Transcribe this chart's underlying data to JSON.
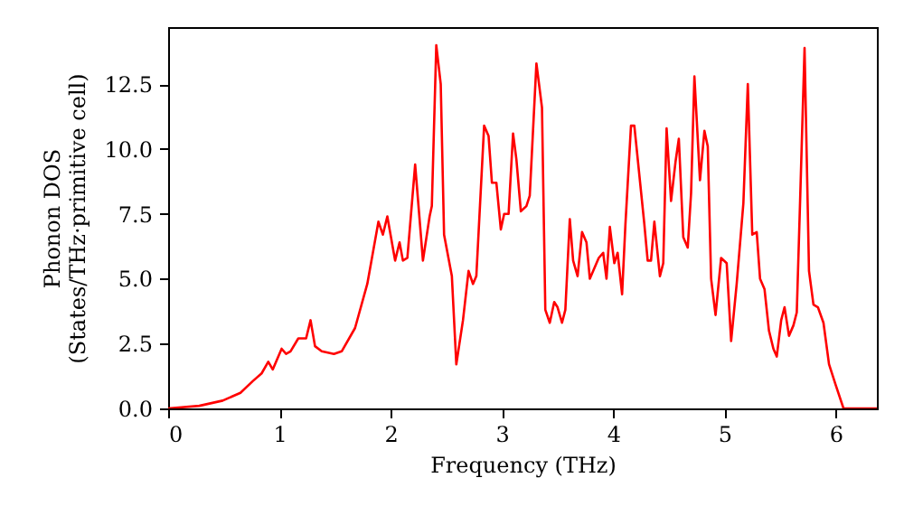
{
  "chart_data": {
    "type": "line",
    "xlabel": "Frequency (THz)",
    "ylabel": "Phonon DOS\n(States/THz·primitive cell)",
    "x": [
      0,
      0.28,
      0.49,
      0.65,
      0.76,
      0.84,
      0.9,
      0.94,
      1.02,
      1.06,
      1.1,
      1.17,
      1.24,
      1.28,
      1.32,
      1.38,
      1.49,
      1.56,
      1.68,
      1.79,
      1.89,
      1.93,
      1.97,
      2.04,
      2.08,
      2.11,
      2.15,
      2.22,
      2.29,
      2.35,
      2.37,
      2.41,
      2.45,
      2.48,
      2.55,
      2.59,
      2.65,
      2.7,
      2.74,
      2.77,
      2.84,
      2.88,
      2.91,
      2.95,
      2.99,
      3.02,
      3.06,
      3.1,
      3.13,
      3.17,
      3.22,
      3.25,
      3.31,
      3.36,
      3.39,
      3.43,
      3.47,
      3.5,
      3.54,
      3.57,
      3.61,
      3.64,
      3.68,
      3.72,
      3.76,
      3.79,
      3.83,
      3.87,
      3.91,
      3.94,
      3.97,
      4.01,
      4.04,
      4.08,
      4.11,
      4.16,
      4.19,
      4.28,
      4.31,
      4.34,
      4.37,
      4.42,
      4.45,
      4.48,
      4.52,
      4.56,
      4.59,
      4.63,
      4.67,
      4.7,
      4.73,
      4.78,
      4.82,
      4.85,
      4.88,
      4.92,
      4.97,
      5.02,
      5.06,
      5.11,
      5.17,
      5.21,
      5.25,
      5.29,
      5.32,
      5.36,
      5.4,
      5.44,
      5.47,
      5.51,
      5.54,
      5.58,
      5.62,
      5.65,
      5.68,
      5.72,
      5.76,
      5.8,
      5.84,
      5.89,
      5.94,
      6.0,
      6.07,
      6.37
    ],
    "series": [
      {
        "color": "#ff0000",
        "values": [
          0,
          0.1,
          0.3,
          0.6,
          1.05,
          1.35,
          1.8,
          1.5,
          2.3,
          2.1,
          2.2,
          2.7,
          2.7,
          3.4,
          2.4,
          2.2,
          2.1,
          2.2,
          3.1,
          4.8,
          7.2,
          6.7,
          7.4,
          5.7,
          6.4,
          5.7,
          5.8,
          9.4,
          5.7,
          7.4,
          7.8,
          14.0,
          12.5,
          6.7,
          5.1,
          1.7,
          3.4,
          5.3,
          4.8,
          5.1,
          10.9,
          10.5,
          8.7,
          8.7,
          6.9,
          7.5,
          7.5,
          10.6,
          9.6,
          7.6,
          7.8,
          8.2,
          13.3,
          11.6,
          3.8,
          3.3,
          4.1,
          3.9,
          3.3,
          3.8,
          7.3,
          5.7,
          5.1,
          6.8,
          6.4,
          5.0,
          5.4,
          5.8,
          6.0,
          5.0,
          7.0,
          5.6,
          6.0,
          4.4,
          7.1,
          10.9,
          10.9,
          7.1,
          5.7,
          5.7,
          7.2,
          5.1,
          5.6,
          10.8,
          8.0,
          9.5,
          10.4,
          6.6,
          6.2,
          8.3,
          12.8,
          8.8,
          10.7,
          10.1,
          5.0,
          3.6,
          5.8,
          5.6,
          2.6,
          4.8,
          7.9,
          12.5,
          6.7,
          6.8,
          5.0,
          4.6,
          3.0,
          2.3,
          2.0,
          3.4,
          3.9,
          2.8,
          3.2,
          3.7,
          8.0,
          13.9,
          5.3,
          4.0,
          3.9,
          3.3,
          1.7,
          0.9,
          0,
          0
        ]
      }
    ],
    "xlim": [
      0,
      6.37
    ],
    "xticks": [
      0,
      1,
      2,
      3,
      4,
      5,
      6
    ],
    "ylim": [
      0,
      14.7
    ],
    "yticks": [
      {
        "value": 0,
        "label": "0.0"
      },
      {
        "value": 2.5,
        "label": "2.5"
      },
      {
        "value": 5,
        "label": "5.0"
      },
      {
        "value": 7.5,
        "label": "7.5"
      },
      {
        "value": 10,
        "label": "10.0"
      },
      {
        "value": 12.5,
        "label": "12.5"
      }
    ],
    "line_style": "solid",
    "marker": "none"
  }
}
